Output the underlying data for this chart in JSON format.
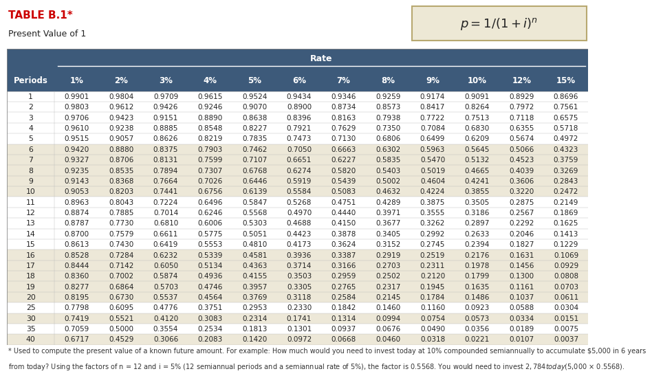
{
  "title": "TABLE B.1*",
  "subtitle": "Present Value of 1",
  "header_bg": "#3d5a7a",
  "header_text": "#ffffff",
  "rate_label": "Rate",
  "col_headers": [
    "Periods",
    "1%",
    "2%",
    "3%",
    "4%",
    "5%",
    "6%",
    "7%",
    "8%",
    "9%",
    "10%",
    "12%",
    "15%"
  ],
  "periods": [
    1,
    2,
    3,
    4,
    5,
    6,
    7,
    8,
    9,
    10,
    11,
    12,
    13,
    14,
    15,
    16,
    17,
    18,
    19,
    20,
    25,
    30,
    35,
    40
  ],
  "data": [
    [
      0.9901,
      0.9804,
      0.9709,
      0.9615,
      0.9524,
      0.9434,
      0.9346,
      0.9259,
      0.9174,
      0.9091,
      0.8929,
      0.8696
    ],
    [
      0.9803,
      0.9612,
      0.9426,
      0.9246,
      0.907,
      0.89,
      0.8734,
      0.8573,
      0.8417,
      0.8264,
      0.7972,
      0.7561
    ],
    [
      0.9706,
      0.9423,
      0.9151,
      0.889,
      0.8638,
      0.8396,
      0.8163,
      0.7938,
      0.7722,
      0.7513,
      0.7118,
      0.6575
    ],
    [
      0.961,
      0.9238,
      0.8885,
      0.8548,
      0.8227,
      0.7921,
      0.7629,
      0.735,
      0.7084,
      0.683,
      0.6355,
      0.5718
    ],
    [
      0.9515,
      0.9057,
      0.8626,
      0.8219,
      0.7835,
      0.7473,
      0.713,
      0.6806,
      0.6499,
      0.6209,
      0.5674,
      0.4972
    ],
    [
      0.942,
      0.888,
      0.8375,
      0.7903,
      0.7462,
      0.705,
      0.6663,
      0.6302,
      0.5963,
      0.5645,
      0.5066,
      0.4323
    ],
    [
      0.9327,
      0.8706,
      0.8131,
      0.7599,
      0.7107,
      0.6651,
      0.6227,
      0.5835,
      0.547,
      0.5132,
      0.4523,
      0.3759
    ],
    [
      0.9235,
      0.8535,
      0.7894,
      0.7307,
      0.6768,
      0.6274,
      0.582,
      0.5403,
      0.5019,
      0.4665,
      0.4039,
      0.3269
    ],
    [
      0.9143,
      0.8368,
      0.7664,
      0.7026,
      0.6446,
      0.5919,
      0.5439,
      0.5002,
      0.4604,
      0.4241,
      0.3606,
      0.2843
    ],
    [
      0.9053,
      0.8203,
      0.7441,
      0.6756,
      0.6139,
      0.5584,
      0.5083,
      0.4632,
      0.4224,
      0.3855,
      0.322,
      0.2472
    ],
    [
      0.8963,
      0.8043,
      0.7224,
      0.6496,
      0.5847,
      0.5268,
      0.4751,
      0.4289,
      0.3875,
      0.3505,
      0.2875,
      0.2149
    ],
    [
      0.8874,
      0.7885,
      0.7014,
      0.6246,
      0.5568,
      0.497,
      0.444,
      0.3971,
      0.3555,
      0.3186,
      0.2567,
      0.1869
    ],
    [
      0.8787,
      0.773,
      0.681,
      0.6006,
      0.5303,
      0.4688,
      0.415,
      0.3677,
      0.3262,
      0.2897,
      0.2292,
      0.1625
    ],
    [
      0.87,
      0.7579,
      0.6611,
      0.5775,
      0.5051,
      0.4423,
      0.3878,
      0.3405,
      0.2992,
      0.2633,
      0.2046,
      0.1413
    ],
    [
      0.8613,
      0.743,
      0.6419,
      0.5553,
      0.481,
      0.4173,
      0.3624,
      0.3152,
      0.2745,
      0.2394,
      0.1827,
      0.1229
    ],
    [
      0.8528,
      0.7284,
      0.6232,
      0.5339,
      0.4581,
      0.3936,
      0.3387,
      0.2919,
      0.2519,
      0.2176,
      0.1631,
      0.1069
    ],
    [
      0.8444,
      0.7142,
      0.605,
      0.5134,
      0.4363,
      0.3714,
      0.3166,
      0.2703,
      0.2311,
      0.1978,
      0.1456,
      0.0929
    ],
    [
      0.836,
      0.7002,
      0.5874,
      0.4936,
      0.4155,
      0.3503,
      0.2959,
      0.2502,
      0.212,
      0.1799,
      0.13,
      0.0808
    ],
    [
      0.8277,
      0.6864,
      0.5703,
      0.4746,
      0.3957,
      0.3305,
      0.2765,
      0.2317,
      0.1945,
      0.1635,
      0.1161,
      0.0703
    ],
    [
      0.8195,
      0.673,
      0.5537,
      0.4564,
      0.3769,
      0.3118,
      0.2584,
      0.2145,
      0.1784,
      0.1486,
      0.1037,
      0.0611
    ],
    [
      0.7798,
      0.6095,
      0.4776,
      0.3751,
      0.2953,
      0.233,
      0.1842,
      0.146,
      0.116,
      0.0923,
      0.0588,
      0.0304
    ],
    [
      0.7419,
      0.5521,
      0.412,
      0.3083,
      0.2314,
      0.1741,
      0.1314,
      0.0994,
      0.0754,
      0.0573,
      0.0334,
      0.0151
    ],
    [
      0.7059,
      0.5,
      0.3554,
      0.2534,
      0.1813,
      0.1301,
      0.0937,
      0.0676,
      0.049,
      0.0356,
      0.0189,
      0.0075
    ],
    [
      0.6717,
      0.4529,
      0.3066,
      0.2083,
      0.142,
      0.0972,
      0.0668,
      0.046,
      0.0318,
      0.0221,
      0.0107,
      0.0037
    ]
  ],
  "footnote_line1": "* Used to compute the present value of a known future amount. For example: How much would you need to invest today at 10% compounded semiannually to accumulate $5,000 in 6 years",
  "footnote_line2": "from today? Using the factors of n = 12 and i = 5% (12 semiannual periods and a semiannual rate of 5%), the factor is 0.5568. You would need to invest $2,784 today ($5,000 × 0.5568).",
  "formula_box_bg": "#ede8d5",
  "formula_box_border": "#b8a870",
  "row_white": "#ffffff",
  "row_tan": "#ede8d8",
  "title_color": "#cc0000",
  "text_color": "#222222"
}
